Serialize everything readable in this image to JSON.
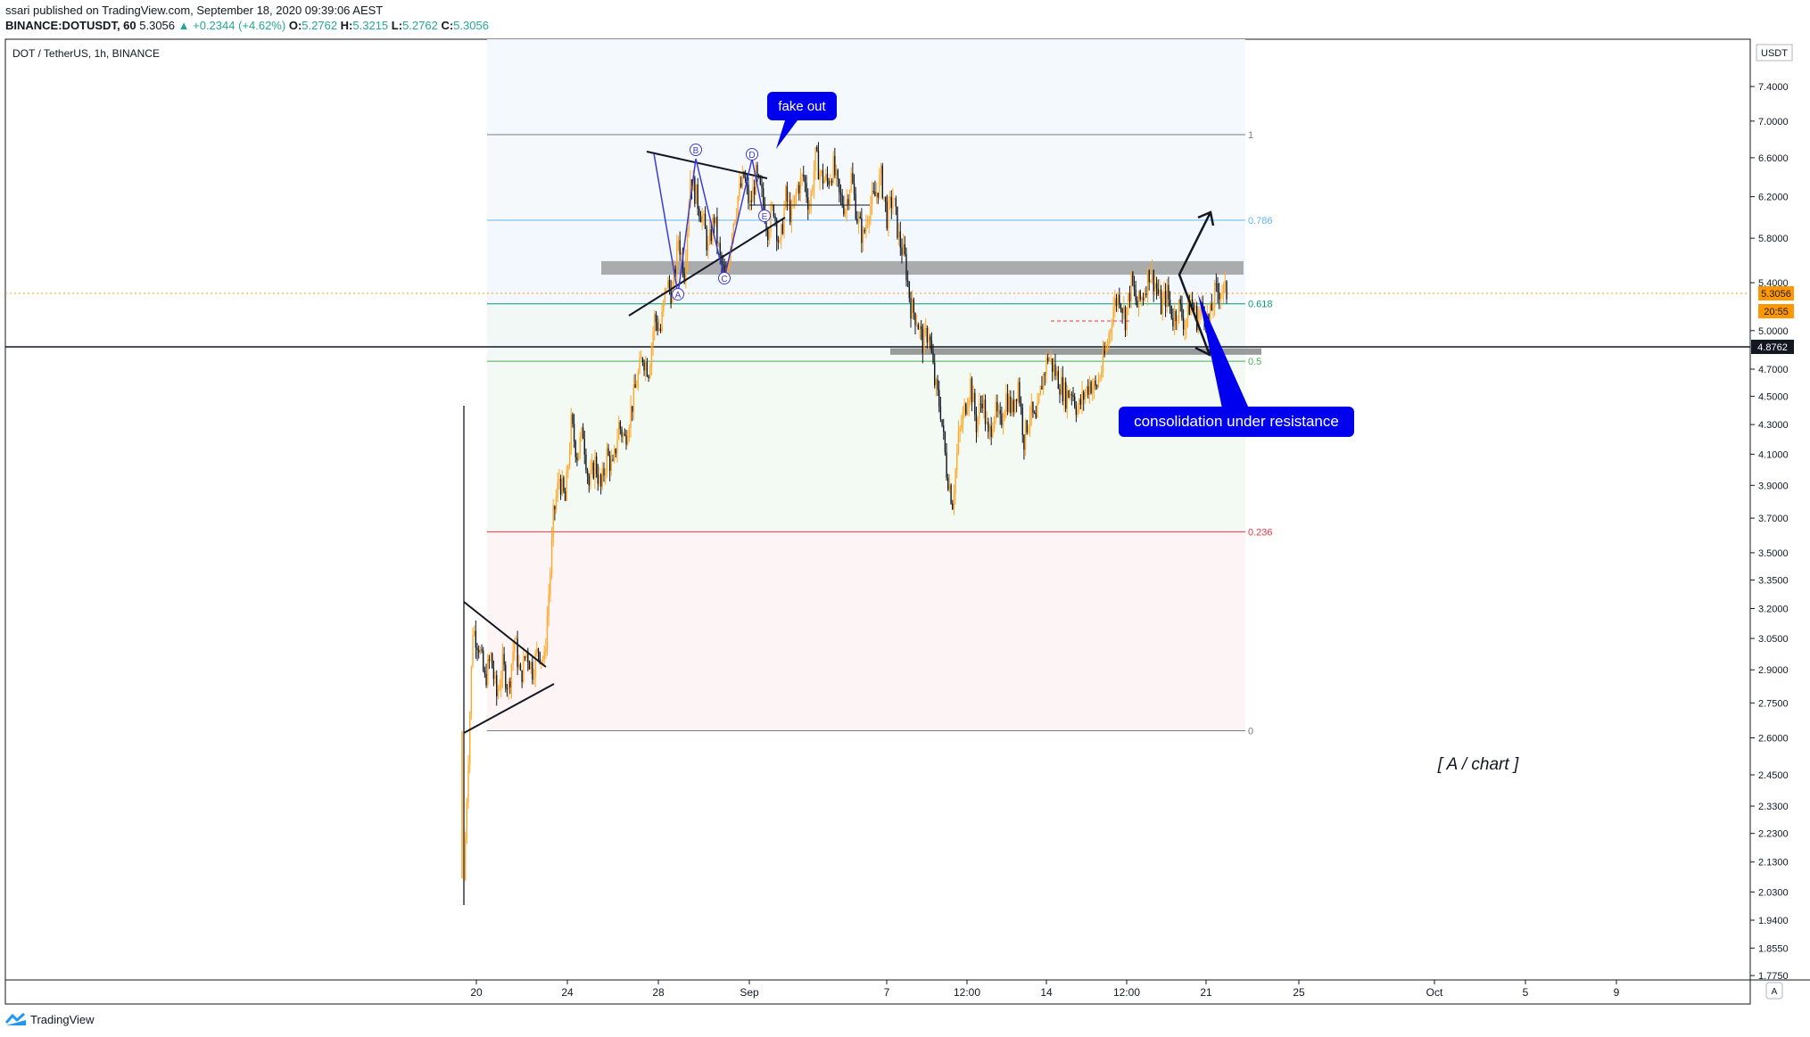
{
  "header": {
    "line1": "ssari published on TradingView.com, September 18, 2020 09:39:06 AEST",
    "symbol": "BINANCE:DOTUSDT, 60",
    "last": "5.3056",
    "change": "▲ +0.2344 (+4.62%)",
    "o_label": "O:",
    "o": "5.2762",
    "h_label": "H:",
    "h": "5.3215",
    "l_label": "L:",
    "l": "5.2762",
    "c_label": "C:",
    "c": "5.3056"
  },
  "chart_data": {
    "type": "candlestick",
    "title": "DOT / TetherUS, 1h, BINANCE",
    "currency": "USDT",
    "y_scale": "log",
    "ylim": [
      1.775,
      7.8
    ],
    "y_ticks": [
      "7.4000",
      "7.0000",
      "6.6000",
      "6.2000",
      "5.8000",
      "5.4000",
      "5.0000",
      "4.7000",
      "4.5000",
      "4.3000",
      "4.1000",
      "3.9000",
      "3.7000",
      "3.5000",
      "3.3500",
      "3.2000",
      "3.0500",
      "2.9000",
      "2.7500",
      "2.6000",
      "2.4500",
      "2.3300",
      "2.2300",
      "2.1300",
      "2.0300",
      "1.9400",
      "1.8550",
      "1.7750"
    ],
    "x_ticks": [
      "20",
      "24",
      "28",
      "Sep",
      "7",
      "12:00",
      "14",
      "12:00",
      "21",
      "25",
      "Oct",
      "5",
      "9"
    ],
    "last_price": "5.3056",
    "last_price_time": "20:55",
    "crosshair_price": "4.8762",
    "candle_colors": {
      "up": "#ffa726",
      "down": "#131722"
    },
    "fibonacci": {
      "levels": [
        {
          "label": "1",
          "price": 6.85,
          "color": "#787b86"
        },
        {
          "label": "0.786",
          "price": 5.97,
          "color": "#64b5f6"
        },
        {
          "label": "0.618",
          "price": 5.22,
          "color": "#089981"
        },
        {
          "label": "0.5",
          "price": 4.76,
          "color": "#4caf50"
        },
        {
          "label": "0.236",
          "price": 3.62,
          "color": "#f23645"
        },
        {
          "label": "0",
          "price": 2.63,
          "color": "#787b86"
        }
      ]
    },
    "resistance_zone": [
      5.47,
      5.59
    ],
    "support_zone": [
      4.81,
      4.86
    ],
    "wave_labels": [
      "A",
      "B",
      "C",
      "D",
      "E"
    ],
    "annotations": [
      "fake out",
      "consolidation under resistance",
      "[ A / chart ]"
    ],
    "series": [
      {
        "name": "DOTUSDT 1h",
        "path": [
          [
            0,
            2.07
          ],
          [
            6,
            3.1
          ],
          [
            10,
            3.02
          ],
          [
            14,
            2.85
          ],
          [
            18,
            2.96
          ],
          [
            22,
            2.78
          ],
          [
            26,
            2.92
          ],
          [
            30,
            2.82
          ],
          [
            34,
            3.05
          ],
          [
            38,
            2.86
          ],
          [
            42,
            2.99
          ],
          [
            46,
            2.9
          ],
          [
            50,
            3.0
          ],
          [
            54,
            2.94
          ],
          [
            58,
            3.4
          ],
          [
            60,
            3.7
          ],
          [
            64,
            3.95
          ],
          [
            68,
            3.8
          ],
          [
            72,
            4.3
          ],
          [
            76,
            4.1
          ],
          [
            80,
            4.25
          ],
          [
            84,
            3.9
          ],
          [
            88,
            4.05
          ],
          [
            92,
            3.88
          ],
          [
            96,
            4.1
          ],
          [
            100,
            4.0
          ],
          [
            104,
            4.3
          ],
          [
            108,
            4.2
          ],
          [
            112,
            4.4
          ],
          [
            116,
            4.6
          ],
          [
            120,
            4.8
          ],
          [
            124,
            4.7
          ],
          [
            128,
            5.1
          ],
          [
            132,
            5.0
          ],
          [
            136,
            5.4
          ],
          [
            140,
            5.3
          ],
          [
            144,
            5.8
          ],
          [
            148,
            5.5
          ],
          [
            152,
            6.4
          ],
          [
            156,
            6.2
          ],
          [
            160,
            6.0
          ],
          [
            164,
            5.7
          ],
          [
            168,
            6.0
          ],
          [
            172,
            5.6
          ],
          [
            176,
            5.4
          ],
          [
            180,
            5.9
          ],
          [
            184,
            6.2
          ],
          [
            188,
            6.4
          ],
          [
            192,
            6.1
          ],
          [
            196,
            6.4
          ],
          [
            200,
            6.2
          ],
          [
            204,
            5.9
          ],
          [
            208,
            6.1
          ],
          [
            212,
            5.7
          ],
          [
            216,
            6.2
          ],
          [
            220,
            6.0
          ],
          [
            224,
            6.3
          ],
          [
            228,
            6.4
          ],
          [
            232,
            6.1
          ],
          [
            236,
            6.6
          ],
          [
            240,
            6.4
          ],
          [
            244,
            6.35
          ],
          [
            248,
            6.5
          ],
          [
            252,
            6.2
          ],
          [
            256,
            6.1
          ],
          [
            260,
            6.4
          ],
          [
            264,
            6.0
          ],
          [
            268,
            5.8
          ],
          [
            272,
            6.1
          ],
          [
            276,
            6.2
          ],
          [
            280,
            6.4
          ],
          [
            284,
            6.0
          ],
          [
            288,
            6.2
          ],
          [
            292,
            5.8
          ],
          [
            296,
            5.6
          ],
          [
            300,
            5.2
          ],
          [
            304,
            5.1
          ],
          [
            308,
            4.9
          ],
          [
            312,
            5.0
          ],
          [
            316,
            4.6
          ],
          [
            320,
            4.4
          ],
          [
            324,
            4.0
          ],
          [
            328,
            3.8
          ],
          [
            332,
            4.2
          ],
          [
            336,
            4.4
          ],
          [
            340,
            4.6
          ],
          [
            344,
            4.3
          ],
          [
            348,
            4.5
          ],
          [
            352,
            4.2
          ],
          [
            356,
            4.4
          ],
          [
            360,
            4.3
          ],
          [
            364,
            4.5
          ],
          [
            368,
            4.4
          ],
          [
            372,
            4.6
          ],
          [
            376,
            4.2
          ],
          [
            380,
            4.4
          ],
          [
            384,
            4.3
          ],
          [
            388,
            4.6
          ],
          [
            392,
            4.8
          ],
          [
            396,
            4.7
          ],
          [
            400,
            4.6
          ],
          [
            404,
            4.5
          ],
          [
            408,
            4.55
          ],
          [
            412,
            4.4
          ],
          [
            416,
            4.5
          ],
          [
            420,
            4.6
          ],
          [
            424,
            4.55
          ],
          [
            428,
            4.7
          ],
          [
            432,
            4.9
          ],
          [
            436,
            5.2
          ],
          [
            440,
            5.3
          ],
          [
            444,
            5.1
          ],
          [
            448,
            5.4
          ],
          [
            452,
            5.2
          ],
          [
            456,
            5.3
          ],
          [
            460,
            5.5
          ],
          [
            464,
            5.4
          ],
          [
            468,
            5.2
          ],
          [
            472,
            5.3
          ],
          [
            476,
            5.1
          ],
          [
            480,
            5.2
          ],
          [
            484,
            5.05
          ],
          [
            488,
            5.25
          ],
          [
            492,
            5.1
          ],
          [
            496,
            5.2
          ],
          [
            500,
            5.06
          ],
          [
            504,
            5.3
          ],
          [
            508,
            5.35
          ],
          [
            512,
            5.31
          ]
        ]
      }
    ]
  },
  "footer": {
    "brand": "TradingView"
  },
  "colors": {
    "orange": "#ff9800",
    "blue": "#0000ee",
    "wave": "#3b3bd6"
  }
}
